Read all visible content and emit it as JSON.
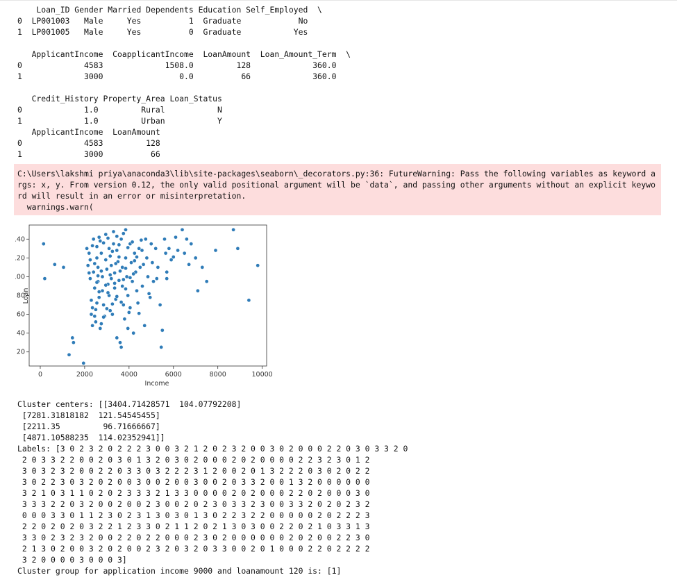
{
  "output": {
    "table1_header": "    Loan_ID Gender Married Dependents Education Self_Employed  \\",
    "table1_rows": [
      "0  LP001003   Male     Yes          1  Graduate            No",
      "1  LP001005   Male     Yes          0  Graduate           Yes"
    ],
    "table2_header": "   ApplicantIncome  CoapplicantIncome  LoanAmount  Loan_Amount_Term  \\",
    "table2_rows": [
      "0             4583             1508.0         128             360.0",
      "1             3000                0.0          66             360.0"
    ],
    "table3_header": "   Credit_History Property_Area Loan_Status",
    "table3_rows": [
      "0             1.0         Rural           N",
      "1             1.0         Urban           Y"
    ],
    "table4_header": "   ApplicantIncome  LoanAmount",
    "table4_rows": [
      "0             4583         128",
      "1             3000          66"
    ]
  },
  "warning": {
    "text": "C:\\Users\\lakshmi priya\\anaconda3\\lib\\site-packages\\seaborn\\_decorators.py:36: FutureWarning: Pass the following variables as keyword args: x, y. From version 0.12, the only valid positional argument will be `data`, and passing other arguments without an explicit keyword will result in an error or misinterpretation.\n  warnings.warn("
  },
  "chart_data": {
    "type": "scatter",
    "title": "",
    "xlabel": "Income",
    "ylabel": "Loan",
    "xlim": [
      -500,
      10200
    ],
    "ylim": [
      5,
      155
    ],
    "xticks": [
      0,
      2000,
      4000,
      6000,
      8000,
      10000
    ],
    "yticks": [
      20,
      40,
      60,
      80,
      100,
      120,
      140
    ],
    "grid": false,
    "color": "#2f7cb8",
    "points": [
      [
        150,
        135
      ],
      [
        200,
        98
      ],
      [
        650,
        113
      ],
      [
        1050,
        110
      ],
      [
        1300,
        17
      ],
      [
        1450,
        35
      ],
      [
        1500,
        30
      ],
      [
        1950,
        8
      ],
      [
        2100,
        130
      ],
      [
        2150,
        112
      ],
      [
        2200,
        125
      ],
      [
        2250,
        118
      ],
      [
        2250,
        98
      ],
      [
        2300,
        75
      ],
      [
        2300,
        60
      ],
      [
        2350,
        48
      ],
      [
        2400,
        140
      ],
      [
        2400,
        105
      ],
      [
        2450,
        88
      ],
      [
        2500,
        65
      ],
      [
        2500,
        52
      ],
      [
        2550,
        132
      ],
      [
        2550,
        120
      ],
      [
        2600,
        110
      ],
      [
        2600,
        95
      ],
      [
        2650,
        78
      ],
      [
        2700,
        45
      ],
      [
        2700,
        138
      ],
      [
        2750,
        125
      ],
      [
        2800,
        100
      ],
      [
        2800,
        85
      ],
      [
        2850,
        70
      ],
      [
        2900,
        58
      ],
      [
        2950,
        145
      ],
      [
        2950,
        118
      ],
      [
        3000,
        108
      ],
      [
        3000,
        66
      ],
      [
        3050,
        92
      ],
      [
        3100,
        80
      ],
      [
        3100,
        130
      ],
      [
        3150,
        122
      ],
      [
        3200,
        112
      ],
      [
        3200,
        98
      ],
      [
        3250,
        60
      ],
      [
        3300,
        148
      ],
      [
        3300,
        135
      ],
      [
        3350,
        104
      ],
      [
        3350,
        88
      ],
      [
        3400,
        76
      ],
      [
        3450,
        35
      ],
      [
        3450,
        128
      ],
      [
        3500,
        116
      ],
      [
        3550,
        96
      ],
      [
        3600,
        30
      ],
      [
        3650,
        25
      ],
      [
        3650,
        140
      ],
      [
        3700,
        110
      ],
      [
        3700,
        90
      ],
      [
        3750,
        70
      ],
      [
        3800,
        55
      ],
      [
        3850,
        150
      ],
      [
        3850,
        120
      ],
      [
        3900,
        100
      ],
      [
        3950,
        80
      ],
      [
        4000,
        62
      ],
      [
        4050,
        135
      ],
      [
        4100,
        115
      ],
      [
        4150,
        95
      ],
      [
        4200,
        40
      ],
      [
        4250,
        125
      ],
      [
        4300,
        105
      ],
      [
        4350,
        85
      ],
      [
        4400,
        72
      ],
      [
        4450,
        130
      ],
      [
        4500,
        110
      ],
      [
        4583,
        128
      ],
      [
        4600,
        90
      ],
      [
        4700,
        48
      ],
      [
        4750,
        140
      ],
      [
        4800,
        120
      ],
      [
        4850,
        100
      ],
      [
        4900,
        82
      ],
      [
        5000,
        135
      ],
      [
        5050,
        115
      ],
      [
        5100,
        95
      ],
      [
        5200,
        130
      ],
      [
        5300,
        110
      ],
      [
        5400,
        70
      ],
      [
        5450,
        25
      ],
      [
        5500,
        43
      ],
      [
        5600,
        140
      ],
      [
        5650,
        125
      ],
      [
        5700,
        105
      ],
      [
        5800,
        130
      ],
      [
        5900,
        118
      ],
      [
        6100,
        142
      ],
      [
        6200,
        128
      ],
      [
        6400,
        150
      ],
      [
        6600,
        140
      ],
      [
        6800,
        135
      ],
      [
        7000,
        120
      ],
      [
        7100,
        85
      ],
      [
        7300,
        110
      ],
      [
        7500,
        95
      ],
      [
        7900,
        128
      ],
      [
        8700,
        150
      ],
      [
        8900,
        130
      ],
      [
        9400,
        75
      ],
      [
        9800,
        112
      ],
      [
        2350,
        133
      ],
      [
        2650,
        142
      ],
      [
        2850,
        136
      ],
      [
        3050,
        141
      ],
      [
        3250,
        127
      ],
      [
        3450,
        143
      ],
      [
        3550,
        134
      ],
      [
        3750,
        146
      ],
      [
        3950,
        131
      ],
      [
        4150,
        137
      ],
      [
        4350,
        121
      ],
      [
        4550,
        139
      ],
      [
        2450,
        114
      ],
      [
        2750,
        106
      ],
      [
        3150,
        102
      ],
      [
        3550,
        121
      ],
      [
        3850,
        109
      ],
      [
        4250,
        117
      ],
      [
        4650,
        113
      ],
      [
        2550,
        94
      ],
      [
        2950,
        91
      ],
      [
        3350,
        93
      ],
      [
        3750,
        97
      ],
      [
        4050,
        99
      ],
      [
        2650,
        84
      ],
      [
        3050,
        83
      ],
      [
        3450,
        79
      ],
      [
        3850,
        87
      ],
      [
        2550,
        72
      ],
      [
        3250,
        71
      ],
      [
        3650,
        73
      ],
      [
        2450,
        58
      ],
      [
        2850,
        57
      ],
      [
        3150,
        64
      ],
      [
        2350,
        67
      ],
      [
        4050,
        67
      ],
      [
        4450,
        61
      ],
      [
        3950,
        45
      ],
      [
        2750,
        50
      ],
      [
        5250,
        98
      ],
      [
        4950,
        78
      ],
      [
        5700,
        98
      ],
      [
        6000,
        121
      ],
      [
        6500,
        125
      ],
      [
        6700,
        113
      ],
      [
        2200,
        104
      ],
      [
        2600,
        101
      ],
      [
        3400,
        114
      ],
      [
        3600,
        106
      ],
      [
        4200,
        103
      ]
    ]
  }
}
